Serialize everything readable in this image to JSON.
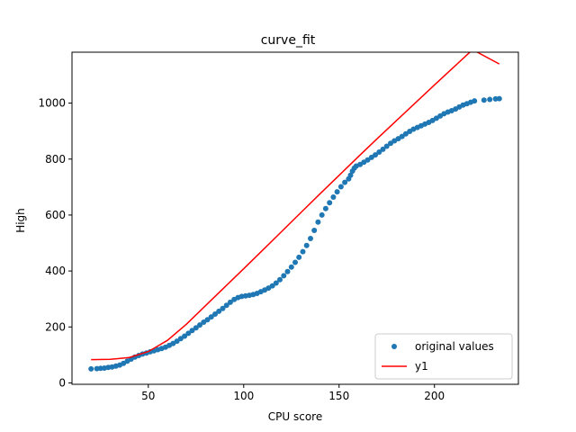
{
  "chart_data": {
    "type": "line",
    "title": "curve_fit",
    "xlabel": "CPU score",
    "ylabel": "High",
    "xlim": [
      10,
      244
    ],
    "ylim": [
      -5,
      1182
    ],
    "xticks": [
      50,
      100,
      150,
      200
    ],
    "yticks": [
      0,
      200,
      400,
      600,
      800,
      1000
    ],
    "grid": false,
    "legend_position": "bottom-right",
    "series": [
      {
        "name": "original values",
        "kind": "scatter",
        "color": "#1f77b4",
        "points": [
          [
            20,
            50
          ],
          [
            23,
            51
          ],
          [
            25,
            52
          ],
          [
            27,
            53
          ],
          [
            29,
            55
          ],
          [
            31,
            57
          ],
          [
            33,
            60
          ],
          [
            35,
            64
          ],
          [
            37,
            70
          ],
          [
            39,
            78
          ],
          [
            41,
            85
          ],
          [
            43,
            92
          ],
          [
            45,
            98
          ],
          [
            47,
            103
          ],
          [
            49,
            107
          ],
          [
            51,
            111
          ],
          [
            53,
            115
          ],
          [
            55,
            119
          ],
          [
            57,
            123
          ],
          [
            59,
            128
          ],
          [
            61,
            134
          ],
          [
            63,
            141
          ],
          [
            65,
            149
          ],
          [
            67,
            158
          ],
          [
            69,
            167
          ],
          [
            71,
            177
          ],
          [
            73,
            187
          ],
          [
            75,
            197
          ],
          [
            77,
            207
          ],
          [
            79,
            217
          ],
          [
            81,
            226
          ],
          [
            83,
            236
          ],
          [
            85,
            246
          ],
          [
            87,
            256
          ],
          [
            89,
            266
          ],
          [
            91,
            277
          ],
          [
            93,
            288
          ],
          [
            95,
            298
          ],
          [
            97,
            305
          ],
          [
            99,
            309
          ],
          [
            101,
            311
          ],
          [
            103,
            313
          ],
          [
            105,
            316
          ],
          [
            107,
            320
          ],
          [
            109,
            326
          ],
          [
            111,
            332
          ],
          [
            113,
            339
          ],
          [
            115,
            347
          ],
          [
            117,
            357
          ],
          [
            119,
            369
          ],
          [
            121,
            383
          ],
          [
            123,
            398
          ],
          [
            125,
            414
          ],
          [
            127,
            431
          ],
          [
            129,
            449
          ],
          [
            131,
            469
          ],
          [
            133,
            491
          ],
          [
            135,
            516
          ],
          [
            137,
            545
          ],
          [
            139,
            575
          ],
          [
            141,
            600
          ],
          [
            143,
            623
          ],
          [
            145,
            644
          ],
          [
            147,
            664
          ],
          [
            149,
            683
          ],
          [
            151,
            701
          ],
          [
            153,
            717
          ],
          [
            155,
            729
          ],
          [
            156,
            742
          ],
          [
            157,
            757
          ],
          [
            158,
            768
          ],
          [
            159,
            775
          ],
          [
            161,
            781
          ],
          [
            163,
            789
          ],
          [
            165,
            797
          ],
          [
            167,
            806
          ],
          [
            169,
            815
          ],
          [
            171,
            825
          ],
          [
            173,
            835
          ],
          [
            175,
            846
          ],
          [
            177,
            856
          ],
          [
            179,
            865
          ],
          [
            181,
            873
          ],
          [
            183,
            881
          ],
          [
            185,
            890
          ],
          [
            187,
            899
          ],
          [
            189,
            907
          ],
          [
            191,
            913
          ],
          [
            193,
            919
          ],
          [
            195,
            925
          ],
          [
            197,
            931
          ],
          [
            199,
            938
          ],
          [
            201,
            946
          ],
          [
            203,
            954
          ],
          [
            205,
            962
          ],
          [
            207,
            968
          ],
          [
            209,
            973
          ],
          [
            211,
            979
          ],
          [
            213,
            986
          ],
          [
            215,
            993
          ],
          [
            217,
            998
          ],
          [
            219,
            1003
          ],
          [
            221,
            1008
          ],
          [
            226,
            1011
          ],
          [
            229,
            1013
          ],
          [
            232,
            1015
          ],
          [
            234,
            1016
          ]
        ]
      },
      {
        "name": "y1",
        "kind": "line",
        "color": "#ff0000",
        "points": [
          [
            20,
            83
          ],
          [
            30,
            84
          ],
          [
            40,
            91
          ],
          [
            50,
            112
          ],
          [
            60,
            152
          ],
          [
            70,
            210
          ],
          [
            80,
            276
          ],
          [
            90,
            342
          ],
          [
            100,
            408
          ],
          [
            110,
            475
          ],
          [
            120,
            542
          ],
          [
            130,
            609
          ],
          [
            140,
            676
          ],
          [
            150,
            742
          ],
          [
            160,
            808
          ],
          [
            170,
            873
          ],
          [
            180,
            937
          ],
          [
            190,
            1001
          ],
          [
            200,
            1065
          ],
          [
            210,
            1128
          ],
          [
            220,
            1191
          ],
          [
            234,
            1140
          ]
        ]
      }
    ]
  }
}
